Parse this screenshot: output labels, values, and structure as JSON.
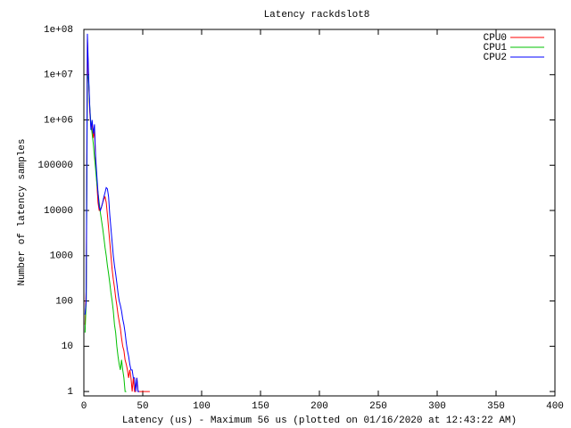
{
  "chart_data": {
    "type": "line",
    "title": "Latency rackdslot8",
    "x_label": "Latency (us) - Maximum 56 us (plotted on 01/16/2020 at 12:43:22 AM)",
    "y_label": "Number of latency samples",
    "log_y": true,
    "legend": "top-right",
    "xlim": [
      0,
      400
    ],
    "xticks": [
      0,
      50,
      100,
      150,
      200,
      250,
      300,
      350,
      400
    ],
    "ylim": [
      0.8,
      100000000
    ],
    "yticks": [
      1,
      10,
      100,
      1000,
      10000,
      100000,
      {
        "value": 1000000,
        "label": "1e+06"
      },
      {
        "value": 10000000,
        "label": "1e+07"
      },
      {
        "value": 100000000,
        "label": "1e+08"
      }
    ],
    "series": [
      {
        "name": "CPU0",
        "color": "#ff0000",
        "x": [
          1,
          2,
          3,
          4,
          5,
          6,
          7,
          8,
          9,
          10,
          11,
          12,
          13,
          14,
          15,
          16,
          17,
          18,
          19,
          20,
          21,
          22,
          23,
          24,
          25,
          26,
          27,
          28,
          29,
          30,
          31,
          32,
          33,
          34,
          35,
          36,
          37,
          38,
          39,
          40,
          41,
          42,
          43,
          44,
          45,
          46,
          47,
          48,
          49,
          50,
          51,
          52,
          53,
          54,
          55,
          56
        ],
        "values": [
          30,
          200,
          60000000,
          8000000,
          1500000,
          700000,
          800000,
          400000,
          600000,
          120000,
          40000,
          15000,
          10000,
          10000,
          12000,
          15000,
          18000,
          20000,
          15000,
          8000,
          4000,
          2000,
          1000,
          500,
          300,
          200,
          120,
          80,
          50,
          35,
          25,
          15,
          10,
          8,
          5,
          4,
          3,
          2,
          3,
          2,
          1,
          2,
          1,
          1,
          2,
          1,
          1,
          1,
          1,
          1,
          1,
          1,
          1,
          1,
          1,
          1
        ]
      },
      {
        "name": "CPU1",
        "color": "#00c000",
        "x": [
          1,
          2,
          3,
          4,
          5,
          6,
          7,
          8,
          9,
          10,
          11,
          12,
          13,
          14,
          15,
          16,
          17,
          18,
          19,
          20,
          21,
          22,
          23,
          24,
          25,
          26,
          27,
          28,
          29,
          30,
          31,
          32,
          33,
          34,
          35,
          36
        ],
        "values": [
          20,
          100,
          10000000,
          8000000,
          2000000,
          800000,
          500000,
          300000,
          150000,
          80000,
          40000,
          25000,
          15000,
          9000,
          6000,
          4000,
          2500,
          1500,
          1000,
          600,
          400,
          250,
          150,
          100,
          60,
          30,
          20,
          10,
          6,
          4,
          3,
          5,
          3,
          2,
          1,
          1
        ]
      },
      {
        "name": "CPU2",
        "color": "#0000ff",
        "x": [
          1,
          2,
          3,
          4,
          5,
          6,
          7,
          8,
          9,
          10,
          11,
          12,
          13,
          14,
          15,
          16,
          17,
          18,
          19,
          20,
          21,
          22,
          23,
          24,
          25,
          26,
          27,
          28,
          29,
          30,
          31,
          32,
          33,
          34,
          35,
          36,
          37,
          38,
          39,
          40,
          41,
          42,
          43,
          44,
          45,
          46,
          47
        ],
        "values": [
          50,
          100,
          80000000,
          10000000,
          2000000,
          600000,
          1000000,
          500000,
          800000,
          150000,
          60000,
          25000,
          12000,
          10000,
          12000,
          15000,
          20000,
          25000,
          32000,
          30000,
          20000,
          8000,
          4000,
          2000,
          1000,
          600,
          400,
          250,
          150,
          100,
          80,
          60,
          40,
          30,
          20,
          12,
          8,
          6,
          4,
          3,
          3,
          2,
          2,
          1,
          2,
          1,
          1
        ]
      }
    ]
  }
}
